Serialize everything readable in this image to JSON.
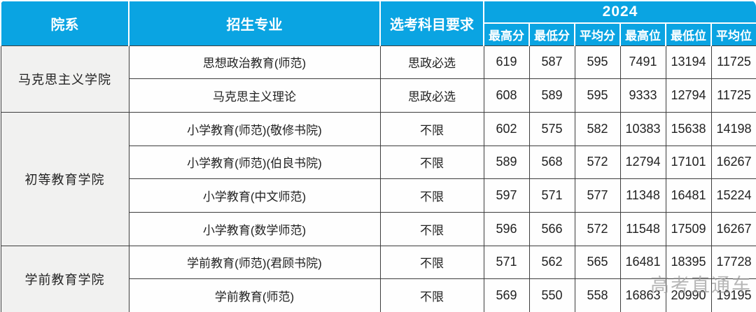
{
  "colors": {
    "header_bg": "#0aa4e2",
    "header_text": "#ffffff",
    "dept_col_bg": "#f1f1f0",
    "grid_border": "#3d3d3d",
    "watermark_text": "#9b9b9b"
  },
  "header": {
    "col_department": "院系",
    "col_major": "招生专业",
    "col_subjects": "选考科目要求",
    "year_group": "2024",
    "sub_columns": [
      "最高分",
      "最低分",
      "平均分",
      "最高位",
      "最低位",
      "平均位"
    ]
  },
  "groups": [
    {
      "department": "马克思主义学院",
      "rows": [
        {
          "major": "思想政治教育(师范)",
          "subjects": "思政必选",
          "values": [
            619,
            587,
            595,
            7491,
            13194,
            11725
          ]
        },
        {
          "major": "马克思主义理论",
          "subjects": "思政必选",
          "values": [
            608,
            589,
            595,
            9333,
            12794,
            11725
          ]
        }
      ]
    },
    {
      "department": "初等教育学院",
      "rows": [
        {
          "major": "小学教育(师范)(敬修书院)",
          "subjects": "不限",
          "values": [
            602,
            575,
            582,
            10383,
            15638,
            14198
          ]
        },
        {
          "major": "小学教育(师范)(伯良书院)",
          "subjects": "不限",
          "values": [
            589,
            568,
            572,
            12794,
            17101,
            16267
          ]
        },
        {
          "major": "小学教育(中文师范)",
          "subjects": "不限",
          "values": [
            597,
            571,
            577,
            11348,
            16481,
            15224
          ]
        },
        {
          "major": "小学教育(数学师范)",
          "subjects": "不限",
          "values": [
            596,
            566,
            572,
            11548,
            17509,
            16267
          ]
        }
      ]
    },
    {
      "department": "学前教育学院",
      "rows": [
        {
          "major": "学前教育(师范)(君顾书院)",
          "subjects": "不限",
          "values": [
            571,
            562,
            565,
            16481,
            18395,
            17728
          ]
        },
        {
          "major": "学前教育(师范)",
          "subjects": "不限",
          "values": [
            569,
            550,
            558,
            16863,
            20990,
            19195
          ]
        }
      ]
    }
  ],
  "watermark": {
    "text": "高考直通车"
  },
  "chart_data": {
    "type": "table",
    "title": "2024",
    "columns": [
      "院系",
      "招生专业",
      "选考科目要求",
      "最高分",
      "最低分",
      "平均分",
      "最高位",
      "最低位",
      "平均位"
    ],
    "rows": [
      [
        "马克思主义学院",
        "思想政治教育(师范)",
        "思政必选",
        619,
        587,
        595,
        7491,
        13194,
        11725
      ],
      [
        "马克思主义学院",
        "马克思主义理论",
        "思政必选",
        608,
        589,
        595,
        9333,
        12794,
        11725
      ],
      [
        "初等教育学院",
        "小学教育(师范)(敬修书院)",
        "不限",
        602,
        575,
        582,
        10383,
        15638,
        14198
      ],
      [
        "初等教育学院",
        "小学教育(师范)(伯良书院)",
        "不限",
        589,
        568,
        572,
        12794,
        17101,
        16267
      ],
      [
        "初等教育学院",
        "小学教育(中文师范)",
        "不限",
        597,
        571,
        577,
        11348,
        16481,
        15224
      ],
      [
        "初等教育学院",
        "小学教育(数学师范)",
        "不限",
        596,
        566,
        572,
        11548,
        17509,
        16267
      ],
      [
        "学前教育学院",
        "学前教育(师范)(君顾书院)",
        "不限",
        571,
        562,
        565,
        16481,
        18395,
        17728
      ],
      [
        "学前教育学院",
        "学前教育(师范)",
        "不限",
        569,
        550,
        558,
        16863,
        20990,
        19195
      ]
    ]
  }
}
